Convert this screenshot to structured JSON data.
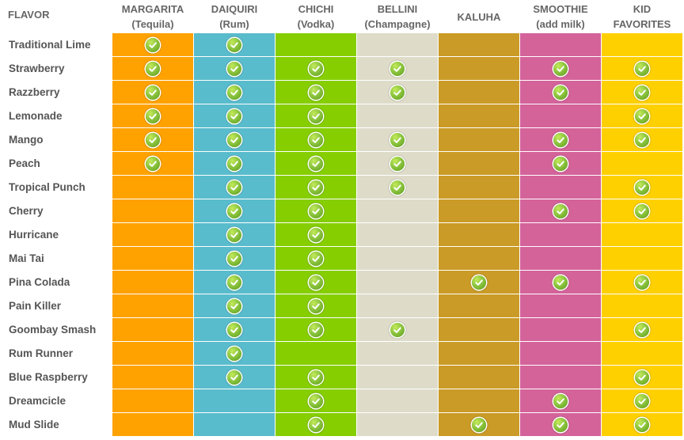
{
  "header": {
    "flavor_label": "FLAVOR"
  },
  "columns": [
    {
      "id": "margarita",
      "line1": "MARGARITA",
      "line2": "(Tequila)",
      "color": "#FFA200"
    },
    {
      "id": "daiquiri",
      "line1": "DAIQUIRI",
      "line2": "(Rum)",
      "color": "#59BCCC"
    },
    {
      "id": "chichi",
      "line1": "CHICHI",
      "line2": "(Vodka)",
      "color": "#86CE00"
    },
    {
      "id": "bellini",
      "line1": "BELLINI",
      "line2": "(Champagne)",
      "color": "#DEDCC9"
    },
    {
      "id": "kaluha",
      "line1": "KALUHA",
      "line2": "",
      "color": "#CA9B26"
    },
    {
      "id": "smoothie",
      "line1": "SMOOTHIE",
      "line2": "(add milk)",
      "color": "#D4639A"
    },
    {
      "id": "kid",
      "line1": "KID",
      "line2": "FAVORITES",
      "color": "#FFD000"
    }
  ],
  "check_icon": "check-circle-icon",
  "rows": [
    {
      "flavor": "Traditional Lime",
      "checks": [
        1,
        1,
        0,
        0,
        0,
        0,
        0
      ]
    },
    {
      "flavor": "Strawberry",
      "checks": [
        1,
        1,
        1,
        1,
        0,
        1,
        1
      ]
    },
    {
      "flavor": "Razzberry",
      "checks": [
        1,
        1,
        1,
        1,
        0,
        1,
        1
      ]
    },
    {
      "flavor": "Lemonade",
      "checks": [
        1,
        1,
        1,
        0,
        0,
        0,
        1
      ]
    },
    {
      "flavor": "Mango",
      "checks": [
        1,
        1,
        1,
        1,
        0,
        1,
        1
      ]
    },
    {
      "flavor": "Peach",
      "checks": [
        1,
        1,
        1,
        1,
        0,
        1,
        0
      ]
    },
    {
      "flavor": "Tropical Punch",
      "checks": [
        0,
        1,
        1,
        1,
        0,
        0,
        1
      ]
    },
    {
      "flavor": "Cherry",
      "checks": [
        0,
        1,
        1,
        0,
        0,
        1,
        1
      ]
    },
    {
      "flavor": "Hurricane",
      "checks": [
        0,
        1,
        1,
        0,
        0,
        0,
        0
      ]
    },
    {
      "flavor": "Mai Tai",
      "checks": [
        0,
        1,
        1,
        0,
        0,
        0,
        0
      ]
    },
    {
      "flavor": "Pina Colada",
      "checks": [
        0,
        1,
        1,
        0,
        1,
        1,
        1
      ]
    },
    {
      "flavor": "Pain Killer",
      "checks": [
        0,
        1,
        1,
        0,
        0,
        0,
        0
      ]
    },
    {
      "flavor": "Goombay Smash",
      "checks": [
        0,
        1,
        1,
        1,
        0,
        0,
        1
      ]
    },
    {
      "flavor": "Rum Runner",
      "checks": [
        0,
        1,
        0,
        0,
        0,
        0,
        0
      ]
    },
    {
      "flavor": "Blue Raspberry",
      "checks": [
        0,
        1,
        1,
        0,
        0,
        0,
        1
      ]
    },
    {
      "flavor": "Dreamcicle",
      "checks": [
        0,
        0,
        1,
        0,
        0,
        1,
        1
      ]
    },
    {
      "flavor": "Mud Slide",
      "checks": [
        0,
        0,
        1,
        0,
        1,
        1,
        1
      ]
    }
  ]
}
